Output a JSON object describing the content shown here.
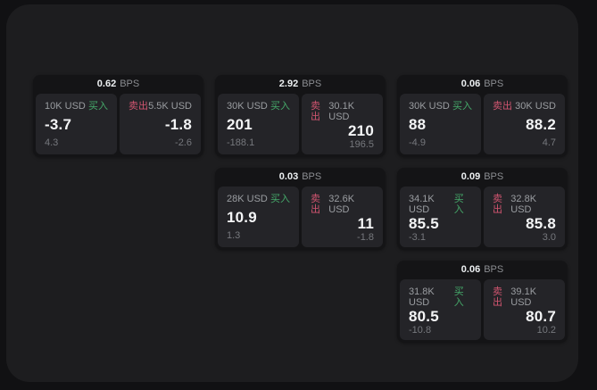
{
  "labels": {
    "buy": "买入",
    "sell": "卖出",
    "bps": "BPS"
  },
  "colors": {
    "buy_green": "#45a96a",
    "sell_red": "#d15570",
    "panel_bg": "#1d1d1f",
    "card_bg": "#141416",
    "subcard_bg": "#242428"
  },
  "cards": [
    {
      "bps": "0.62",
      "buy": {
        "size": "10K USD",
        "price": "-3.7",
        "delta": "4.3"
      },
      "sell": {
        "size": "5.5K USD",
        "price": "-1.8",
        "delta": "-2.6"
      }
    },
    {
      "bps": "2.92",
      "buy": {
        "size": "30K USD",
        "price": "201",
        "delta": "-188.1"
      },
      "sell": {
        "size": "30.1K USD",
        "price": "210",
        "delta": "196.5"
      }
    },
    {
      "bps": "0.06",
      "buy": {
        "size": "30K USD",
        "price": "88",
        "delta": "-4.9"
      },
      "sell": {
        "size": "30K USD",
        "price": "88.2",
        "delta": "4.7"
      }
    },
    {
      "bps": "0.03",
      "buy": {
        "size": "28K USD",
        "price": "10.9",
        "delta": "1.3"
      },
      "sell": {
        "size": "32.6K USD",
        "price": "11",
        "delta": "-1.8"
      }
    },
    {
      "bps": "0.09",
      "buy": {
        "size": "34.1K USD",
        "price": "85.5",
        "delta": "-3.1"
      },
      "sell": {
        "size": "32.8K USD",
        "price": "85.8",
        "delta": "3.0"
      }
    },
    {
      "bps": "0.06",
      "buy": {
        "size": "31.8K USD",
        "price": "80.5",
        "delta": "-10.8"
      },
      "sell": {
        "size": "39.1K USD",
        "price": "80.7",
        "delta": "10.2"
      }
    }
  ]
}
